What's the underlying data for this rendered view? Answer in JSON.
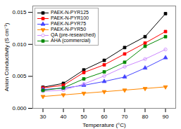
{
  "chart_data": {
    "type": "line",
    "xlabel": "Temperature (°C)",
    "ylabel": "Anion Conductivity (S cm⁻¹)",
    "x": [
      30,
      40,
      50,
      60,
      70,
      80,
      90
    ],
    "series": [
      {
        "name": "PAEK-N-PYR125",
        "color": "#000000",
        "marker": "square",
        "values": [
          0.0033,
          0.0039,
          0.006,
          0.0075,
          0.0095,
          0.0112,
          0.0148
        ]
      },
      {
        "name": "PAEK-N-PYR100",
        "color": "#ff0000",
        "marker": "square",
        "values": [
          0.0032,
          0.0036,
          0.0056,
          0.0068,
          0.0085,
          0.0102,
          0.012
        ]
      },
      {
        "name": "PAEK-N-PYR75",
        "color": "#4444ff",
        "marker": "triangle",
        "values": [
          0.00295,
          0.00315,
          0.0036,
          0.0042,
          0.0049,
          0.0063,
          0.0079
        ]
      },
      {
        "name": "PAEK-N-PYR50",
        "color": "#ff8800",
        "marker": "triangle-down",
        "values": [
          0.00185,
          0.0021,
          0.00235,
          0.0026,
          0.00285,
          0.0031,
          0.00335
        ]
      },
      {
        "name": "QA (pre-researched)",
        "color": "#cc88ff",
        "marker": "open-circle",
        "values": [
          0.00265,
          0.00285,
          0.0038,
          0.00505,
          0.0065,
          0.0077,
          0.0092
        ]
      },
      {
        "name": "AHA (commercial)",
        "color": "#008800",
        "marker": "square",
        "values": [
          0.0028,
          0.0032,
          0.0046,
          0.0057,
          0.0072,
          0.0097,
          0.0112
        ]
      }
    ],
    "xlim": [
      25,
      95
    ],
    "ylim": [
      0.0,
      0.016
    ],
    "xticks": [
      30,
      40,
      50,
      60,
      70,
      80,
      90
    ],
    "yticks": [
      {
        "value": 0,
        "label": "0.000"
      },
      0.005,
      {
        "value": 0.01,
        "label": "0.010"
      },
      0.015
    ],
    "legend": "upper left",
    "grid": false
  }
}
